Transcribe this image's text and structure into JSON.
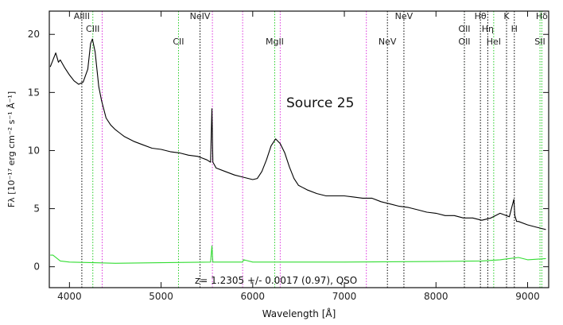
{
  "chart_data": {
    "type": "line",
    "title": "Source 25",
    "xlabel": "Wavelength [Å]",
    "ylabel": "Fλ [10⁻¹⁷ erg cm⁻² s⁻¹ Å⁻¹]",
    "annotation": "z= 1.2305 +/- 0.0017 (0.97), QSO",
    "xlim": [
      3780,
      9230
    ],
    "ylim": [
      -1.8,
      22
    ],
    "x_ticks": [
      4000,
      5000,
      6000,
      7000,
      8000,
      9000
    ],
    "y_ticks": [
      0,
      5,
      10,
      15,
      20
    ],
    "grid": false,
    "colors": {
      "flux": "#000000",
      "noise": "#33dd33",
      "emission": "#22cc22",
      "absorption": "#000000",
      "sky": "#dd33dd"
    },
    "series": [
      {
        "role": "flux",
        "color": "#000000",
        "x": [
          3790,
          3850,
          3880,
          3900,
          3950,
          4000,
          4050,
          4100,
          4150,
          4200,
          4230,
          4250,
          4280,
          4320,
          4350,
          4400,
          4450,
          4500,
          4550,
          4600,
          4700,
          4800,
          4900,
          5000,
          5100,
          5200,
          5300,
          5400,
          5500,
          5540,
          5555,
          5565,
          5580,
          5600,
          5700,
          5800,
          5900,
          6000,
          6050,
          6100,
          6150,
          6200,
          6250,
          6300,
          6350,
          6400,
          6450,
          6500,
          6600,
          6700,
          6800,
          6900,
          7000,
          7100,
          7200,
          7300,
          7400,
          7500,
          7600,
          7700,
          7800,
          7900,
          8000,
          8100,
          8200,
          8300,
          8400,
          8500,
          8600,
          8700,
          8800,
          8850,
          8860,
          8880,
          8900,
          9000,
          9100,
          9200
        ],
        "y": [
          17.2,
          18.4,
          17.6,
          17.8,
          17.1,
          16.5,
          16.0,
          15.7,
          15.9,
          17.0,
          19.2,
          19.6,
          18.5,
          15.5,
          14.3,
          12.8,
          12.2,
          11.8,
          11.5,
          11.2,
          10.8,
          10.5,
          10.2,
          10.1,
          9.9,
          9.8,
          9.6,
          9.5,
          9.2,
          9.0,
          13.6,
          9.0,
          8.8,
          8.5,
          8.2,
          7.9,
          7.7,
          7.5,
          7.6,
          8.2,
          9.2,
          10.4,
          11.0,
          10.6,
          9.8,
          8.6,
          7.6,
          7.0,
          6.6,
          6.3,
          6.1,
          6.1,
          6.1,
          6.0,
          5.9,
          5.9,
          5.6,
          5.4,
          5.2,
          5.1,
          4.9,
          4.7,
          4.6,
          4.4,
          4.4,
          4.2,
          4.2,
          4.0,
          4.2,
          4.6,
          4.3,
          5.8,
          4.4,
          3.9,
          3.9,
          3.6,
          3.4,
          3.2
        ]
      },
      {
        "role": "noise",
        "color": "#33dd33",
        "x": [
          3790,
          3820,
          3900,
          4000,
          4500,
          5000,
          5540,
          5555,
          5565,
          5600,
          5890,
          5900,
          6000,
          6300,
          7000,
          8000,
          8500,
          8700,
          8800,
          8900,
          9000,
          9200
        ],
        "y": [
          1.0,
          1.0,
          0.5,
          0.4,
          0.3,
          0.35,
          0.4,
          1.8,
          0.4,
          0.4,
          0.4,
          0.6,
          0.4,
          0.4,
          0.4,
          0.45,
          0.5,
          0.6,
          0.7,
          0.8,
          0.6,
          0.7
        ]
      }
    ],
    "line_markers": [
      {
        "label": "AlIII",
        "x": 4135,
        "row": 0,
        "style": "absorption"
      },
      {
        "label": "CIII",
        "x": 4255,
        "row": 1,
        "style": "emission"
      },
      {
        "label": "CII",
        "x": 5190,
        "row": 2,
        "style": "emission"
      },
      {
        "label": "NeIV",
        "x": 5425,
        "row": 0,
        "style": "absorption"
      },
      {
        "label": "MgII",
        "x": 6240,
        "row": 2,
        "style": "emission"
      },
      {
        "label": "NeV",
        "x": 7470,
        "row": 2,
        "style": "absorption"
      },
      {
        "label": "NeV",
        "x": 7650,
        "row": 0,
        "style": "absorption"
      },
      {
        "label": "OII",
        "x": 8310,
        "row": 1,
        "style": "emission"
      },
      {
        "label": "OII",
        "x": 8310,
        "row": 2,
        "style": "absorption"
      },
      {
        "label": "Hθ",
        "x": 8485,
        "row": 0,
        "style": "absorption"
      },
      {
        "label": "Hη",
        "x": 8565,
        "row": 1,
        "style": "absorption"
      },
      {
        "label": "HeI",
        "x": 8630,
        "row": 2,
        "style": "emission"
      },
      {
        "label": "K",
        "x": 8770,
        "row": 0,
        "style": "absorption"
      },
      {
        "label": "H",
        "x": 8855,
        "row": 1,
        "style": "absorption"
      },
      {
        "label": "SII",
        "x": 9135,
        "row": 2,
        "style": "emission"
      },
      {
        "label": "Hδ",
        "x": 9155,
        "row": 0,
        "style": "emission"
      }
    ],
    "sky_lines": [
      4357,
      5560,
      5890,
      6300,
      7240
    ]
  }
}
